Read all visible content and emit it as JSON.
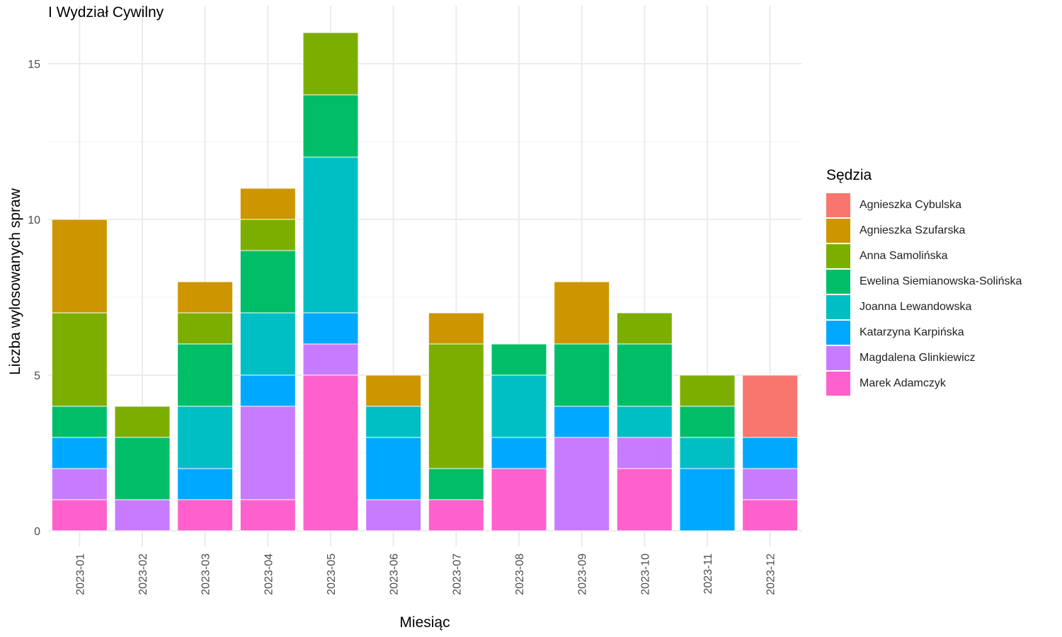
{
  "chart_data": {
    "type": "bar",
    "stacked": true,
    "title": "I Wydział Cywilny",
    "xlabel": "Miesiąc",
    "ylabel": "Liczba wylosowanych spraw",
    "ylim": [
      0,
      16.5
    ],
    "yticks": [
      0,
      5,
      10,
      15
    ],
    "grid": true,
    "legend_title": "Sędzia",
    "legend_position": "right",
    "categories": [
      "2023-01",
      "2023-02",
      "2023-03",
      "2023-04",
      "2023-05",
      "2023-06",
      "2023-07",
      "2023-08",
      "2023-09",
      "2023-10",
      "2023-11",
      "2023-12"
    ],
    "series": [
      {
        "name": "Agnieszka Cybulska",
        "color": "#F8766D",
        "values": [
          0,
          0,
          0,
          0,
          0,
          0,
          0,
          0,
          0,
          0,
          0,
          2
        ]
      },
      {
        "name": "Agnieszka Szufarska",
        "color": "#CD9600",
        "values": [
          3,
          0,
          1,
          1,
          0,
          1,
          1,
          0,
          2,
          0,
          0,
          0
        ]
      },
      {
        "name": "Anna Samolińska",
        "color": "#7CAE00",
        "values": [
          3,
          1,
          1,
          1,
          2,
          0,
          4,
          0,
          0,
          1,
          1,
          0
        ]
      },
      {
        "name": "Ewelina Siemianowska-Solińska",
        "color": "#00BE67",
        "values": [
          1,
          2,
          2,
          2,
          2,
          0,
          1,
          1,
          2,
          2,
          1,
          0
        ]
      },
      {
        "name": "Joanna Lewandowska",
        "color": "#00BFC4",
        "values": [
          0,
          0,
          2,
          2,
          5,
          1,
          0,
          2,
          0,
          1,
          1,
          0
        ]
      },
      {
        "name": "Katarzyna Karpińska",
        "color": "#00A9FF",
        "values": [
          1,
          0,
          1,
          1,
          1,
          2,
          0,
          1,
          1,
          0,
          2,
          1
        ]
      },
      {
        "name": "Magdalena Glinkiewicz",
        "color": "#C77CFF",
        "values": [
          1,
          1,
          0,
          3,
          1,
          1,
          0,
          0,
          3,
          1,
          0,
          1
        ]
      },
      {
        "name": "Marek Adamczyk",
        "color": "#FF61CC",
        "values": [
          1,
          0,
          1,
          1,
          5,
          0,
          1,
          2,
          0,
          2,
          0,
          1
        ]
      }
    ]
  }
}
